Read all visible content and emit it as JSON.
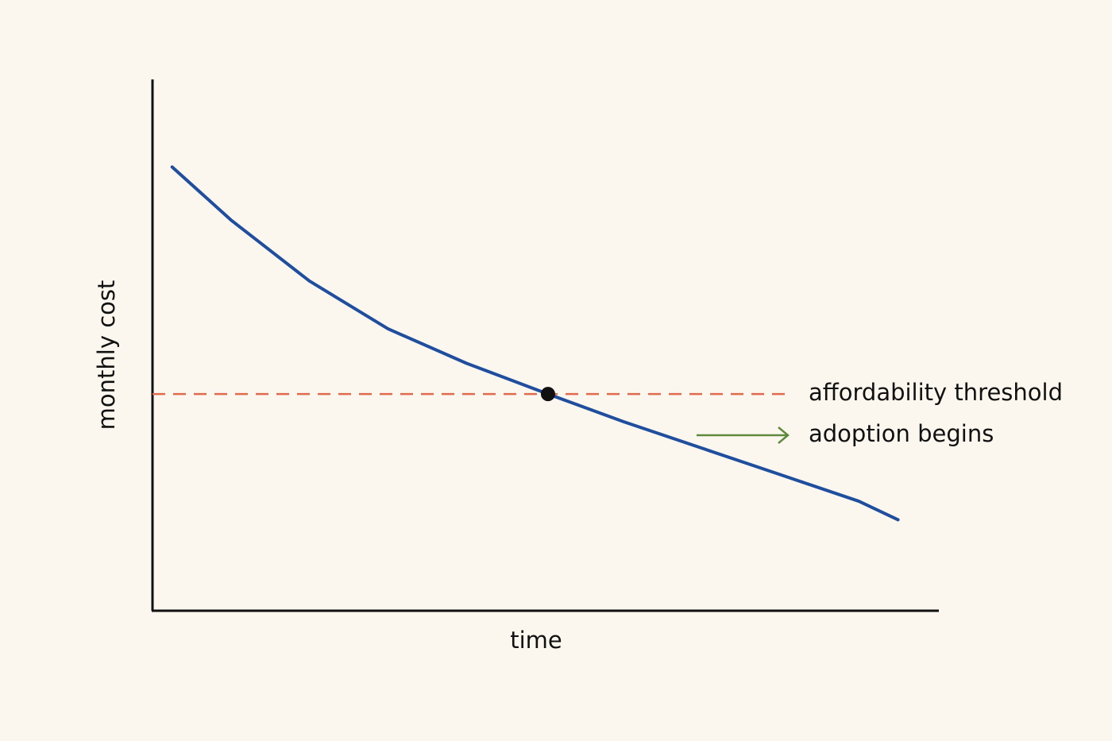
{
  "chart_data": {
    "type": "line",
    "x_label": "time",
    "y_label": "monthly cost",
    "x": [
      2.5,
      10,
      20,
      30,
      40,
      50.4,
      60,
      70,
      80,
      90,
      95
    ],
    "series": [
      {
        "color": "#1f4e9e",
        "values": [
          83.5,
          73.5,
          62,
          53,
          46.5,
          40.7,
          35.5,
          30.5,
          25.5,
          20.5,
          17
        ]
      }
    ],
    "xlim": [
      0,
      100
    ],
    "ylim": [
      0,
      100
    ],
    "threshold": {
      "label": "affordability threshold",
      "value": 40.7,
      "color": "#e06a4e"
    },
    "intersection": {
      "x": 50.4,
      "y": 40.7,
      "color": "#111111"
    },
    "annotation": {
      "text": "adoption begins",
      "color": "#5e8a3e"
    }
  }
}
